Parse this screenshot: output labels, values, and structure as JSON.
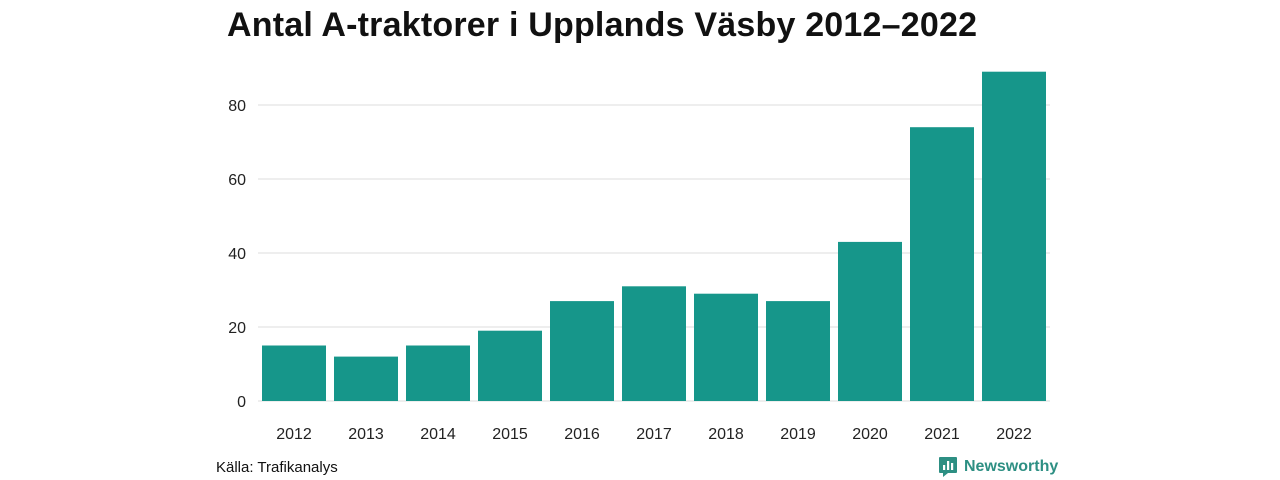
{
  "chart_data": {
    "type": "bar",
    "title": "Antal A-traktorer i Upplands Väsby 2012–2022",
    "categories": [
      "2012",
      "2013",
      "2014",
      "2015",
      "2016",
      "2017",
      "2018",
      "2019",
      "2020",
      "2021",
      "2022"
    ],
    "values": [
      15,
      12,
      15,
      19,
      27,
      31,
      29,
      27,
      43,
      74,
      89
    ],
    "ylim": [
      0,
      90
    ],
    "yticks": [
      0,
      20,
      40,
      60,
      80
    ],
    "xlabel": "",
    "ylabel": "",
    "grid": true,
    "bar_color": "#16968a"
  },
  "source": "Källa: Trafikanalys",
  "brand": {
    "name": "Newsworthy",
    "color": "#2d8f83",
    "icon": "bar-chart-logo-icon"
  }
}
